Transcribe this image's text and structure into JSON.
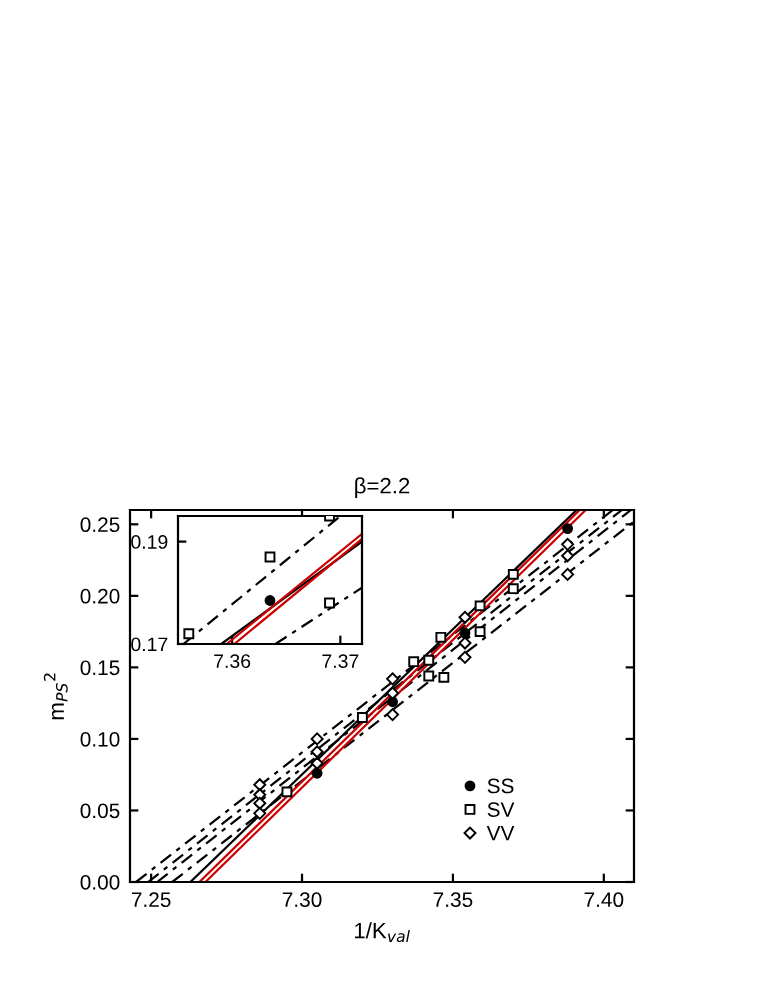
{
  "chart_data": [
    {
      "type": "scatter",
      "title": "β=2.2",
      "xlabel": "1/K$_{val}$",
      "ylabel": "m$_{PS}$$^{2}$",
      "xlim": [
        7.243,
        7.41
      ],
      "ylim": [
        0,
        0.26
      ],
      "xticks": [
        7.25,
        {
          "value": 7.3,
          "label": "7.30"
        },
        7.35,
        {
          "value": 7.4,
          "label": "7.40"
        }
      ],
      "yticks": [
        {
          "value": 0,
          "label": "0.00"
        },
        0.05,
        {
          "value": 0.1,
          "label": "0.10"
        },
        0.15,
        {
          "value": 0.2,
          "label": "0.20"
        },
        0.25
      ],
      "grid": false,
      "legend": "bottom right",
      "series": [
        {
          "name": "SS",
          "color": "#000000",
          "marker": "circle",
          "x": [
            7.305,
            7.33,
            7.354,
            7.388
          ],
          "values": [
            0.076,
            0.126,
            0.174,
            0.247
          ]
        },
        {
          "name": "SV",
          "color": "#000000",
          "marker": "square",
          "x": [
            7.295,
            7.32,
            7.337,
            7.342,
            7.342,
            7.346,
            7.347,
            7.359,
            7.359,
            7.37,
            7.37
          ],
          "values": [
            0.063,
            0.115,
            0.154,
            0.155,
            0.144,
            0.171,
            0.143,
            0.193,
            0.175,
            0.215,
            0.205
          ]
        },
        {
          "name": "VV",
          "color": "#000000",
          "marker": "diamond",
          "x": [
            7.286,
            7.286,
            7.286,
            7.286,
            7.305,
            7.305,
            7.305,
            7.33,
            7.33,
            7.33,
            7.354,
            7.354,
            7.354,
            7.388,
            7.388,
            7.388
          ],
          "values": [
            0.068,
            0.061,
            0.055,
            0.048,
            0.1,
            0.091,
            0.083,
            0.142,
            0.132,
            0.117,
            0.185,
            0.167,
            0.157,
            0.236,
            0.228,
            0.215
          ]
        },
        {
          "type": "line",
          "color": "#000000",
          "line_style": "dashed",
          "x": [
            7.245,
            7.403
          ],
          "values": [
            0,
            0.26
          ]
        },
        {
          "type": "line",
          "color": "#000000",
          "line_style": "dashed",
          "x": [
            7.249,
            7.406
          ],
          "values": [
            0,
            0.26
          ]
        },
        {
          "type": "line",
          "color": "#000000",
          "line_style": "dashed",
          "x": [
            7.252,
            7.409
          ],
          "values": [
            0,
            0.26
          ]
        },
        {
          "type": "line",
          "color": "#000000",
          "line_style": "dashed",
          "x": [
            7.257,
            7.41
          ],
          "values": [
            0,
            0.252
          ]
        },
        {
          "type": "line",
          "color": "#000000",
          "line_style": "solid",
          "x": [
            7.263,
            7.391
          ],
          "values": [
            0,
            0.26
          ]
        },
        {
          "type": "line",
          "color": "#cc0000",
          "line_style": "solid",
          "x": [
            7.266,
            7.392
          ],
          "values": [
            0,
            0.26
          ]
        },
        {
          "type": "line",
          "color": "#cc0000",
          "line_style": "solid",
          "x": [
            7.268,
            7.394
          ],
          "values": [
            0,
            0.26
          ]
        }
      ]
    },
    {
      "type": "scatter",
      "xlim": [
        7.355,
        7.372
      ],
      "ylim": [
        0.17,
        0.195
      ],
      "xticks": [
        7.36,
        7.37
      ],
      "yticks": [
        0.17,
        0.19
      ],
      "grid": false,
      "legend": false,
      "series": [
        {
          "color": "#000000",
          "marker": "square",
          "x": [
            7.356,
            7.3635,
            7.369,
            7.369
          ],
          "values": [
            0.172,
            0.187,
            0.195,
            0.178
          ]
        },
        {
          "color": "#000000",
          "marker": "circle",
          "x": [
            7.3635
          ],
          "values": [
            0.1785
          ]
        },
        {
          "type": "line",
          "color": "#000000",
          "line_style": "dashed",
          "x": [
            7.3555,
            7.37
          ],
          "values": [
            0.17,
            0.195
          ]
        },
        {
          "type": "line",
          "color": "#000000",
          "line_style": "dashed",
          "x": [
            7.364,
            7.372
          ],
          "values": [
            0.17,
            0.181
          ]
        },
        {
          "type": "line",
          "color": "#000000",
          "line_style": "solid",
          "x": [
            7.359,
            7.372
          ],
          "values": [
            0.17,
            0.19
          ]
        },
        {
          "type": "line",
          "color": "#cc0000",
          "line_style": "solid",
          "x": [
            7.3595,
            7.372
          ],
          "values": [
            0.17,
            0.1915
          ]
        },
        {
          "type": "line",
          "color": "#cc0000",
          "line_style": "solid",
          "x": [
            7.3602,
            7.372
          ],
          "values": [
            0.17,
            0.1905
          ]
        }
      ]
    }
  ]
}
